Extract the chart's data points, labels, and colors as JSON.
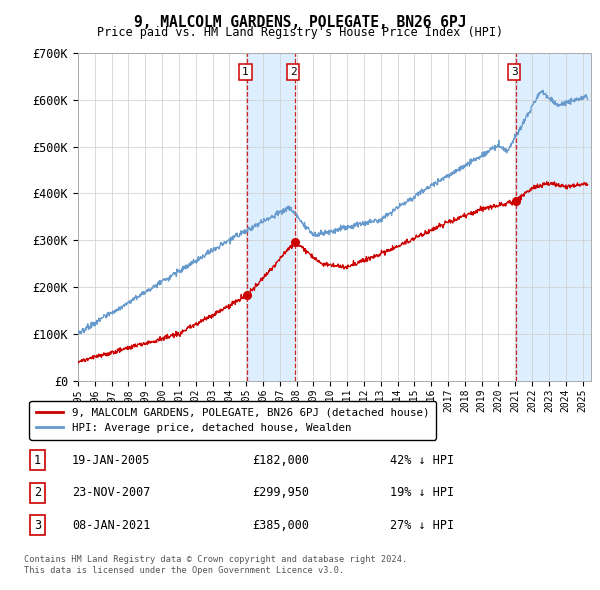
{
  "title": "9, MALCOLM GARDENS, POLEGATE, BN26 6PJ",
  "subtitle": "Price paid vs. HM Land Registry's House Price Index (HPI)",
  "ylabel_ticks": [
    "£0",
    "£100K",
    "£200K",
    "£300K",
    "£400K",
    "£500K",
    "£600K",
    "£700K"
  ],
  "ylim": [
    0,
    700000
  ],
  "xlim_start": 1995.0,
  "xlim_end": 2025.5,
  "transaction1": {
    "date_num": 2005.05,
    "price": 182000,
    "label": "1",
    "text": "19-JAN-2005",
    "amount": "£182,000",
    "hpi_note": "42% ↓ HPI"
  },
  "transaction2": {
    "date_num": 2007.9,
    "price": 299950,
    "label": "2",
    "text": "23-NOV-2007",
    "amount": "£299,950",
    "hpi_note": "19% ↓ HPI"
  },
  "transaction3": {
    "date_num": 2021.03,
    "price": 385000,
    "label": "3",
    "text": "08-JAN-2021",
    "amount": "£385,000",
    "hpi_note": "27% ↓ HPI"
  },
  "red_line_color": "#cc0000",
  "blue_line_color": "#6699cc",
  "shade_color": "#ddeeff",
  "legend_label_red": "9, MALCOLM GARDENS, POLEGATE, BN26 6PJ (detached house)",
  "legend_label_blue": "HPI: Average price, detached house, Wealden",
  "footer1": "Contains HM Land Registry data © Crown copyright and database right 2024.",
  "footer2": "This data is licensed under the Open Government Licence v3.0."
}
